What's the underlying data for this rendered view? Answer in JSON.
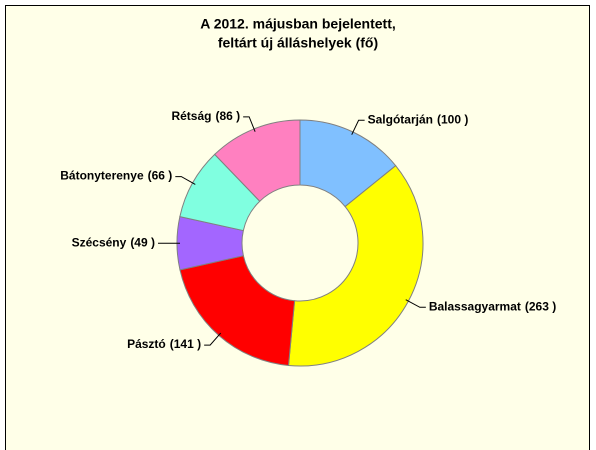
{
  "chart_data": {
    "type": "donut",
    "title_lines": [
      "A 2012. májusban bejelentett,",
      "feltárt új álláshelyek (fő)"
    ],
    "categories": [
      "Salgótarján",
      "Balassagyarmat",
      "Pásztó",
      "Szécsény",
      "Bátonyterenye",
      "Rétság"
    ],
    "values": [
      100,
      263,
      141,
      49,
      66,
      86
    ],
    "value_labels": [
      "(100 )",
      "(263 )",
      "(141 )",
      "(49 )",
      "(66 )",
      "(86 )"
    ],
    "colors": [
      "#80c0ff",
      "#ffff00",
      "#ff0000",
      "#a366ff",
      "#80ffe0",
      "#ff80c0"
    ]
  }
}
